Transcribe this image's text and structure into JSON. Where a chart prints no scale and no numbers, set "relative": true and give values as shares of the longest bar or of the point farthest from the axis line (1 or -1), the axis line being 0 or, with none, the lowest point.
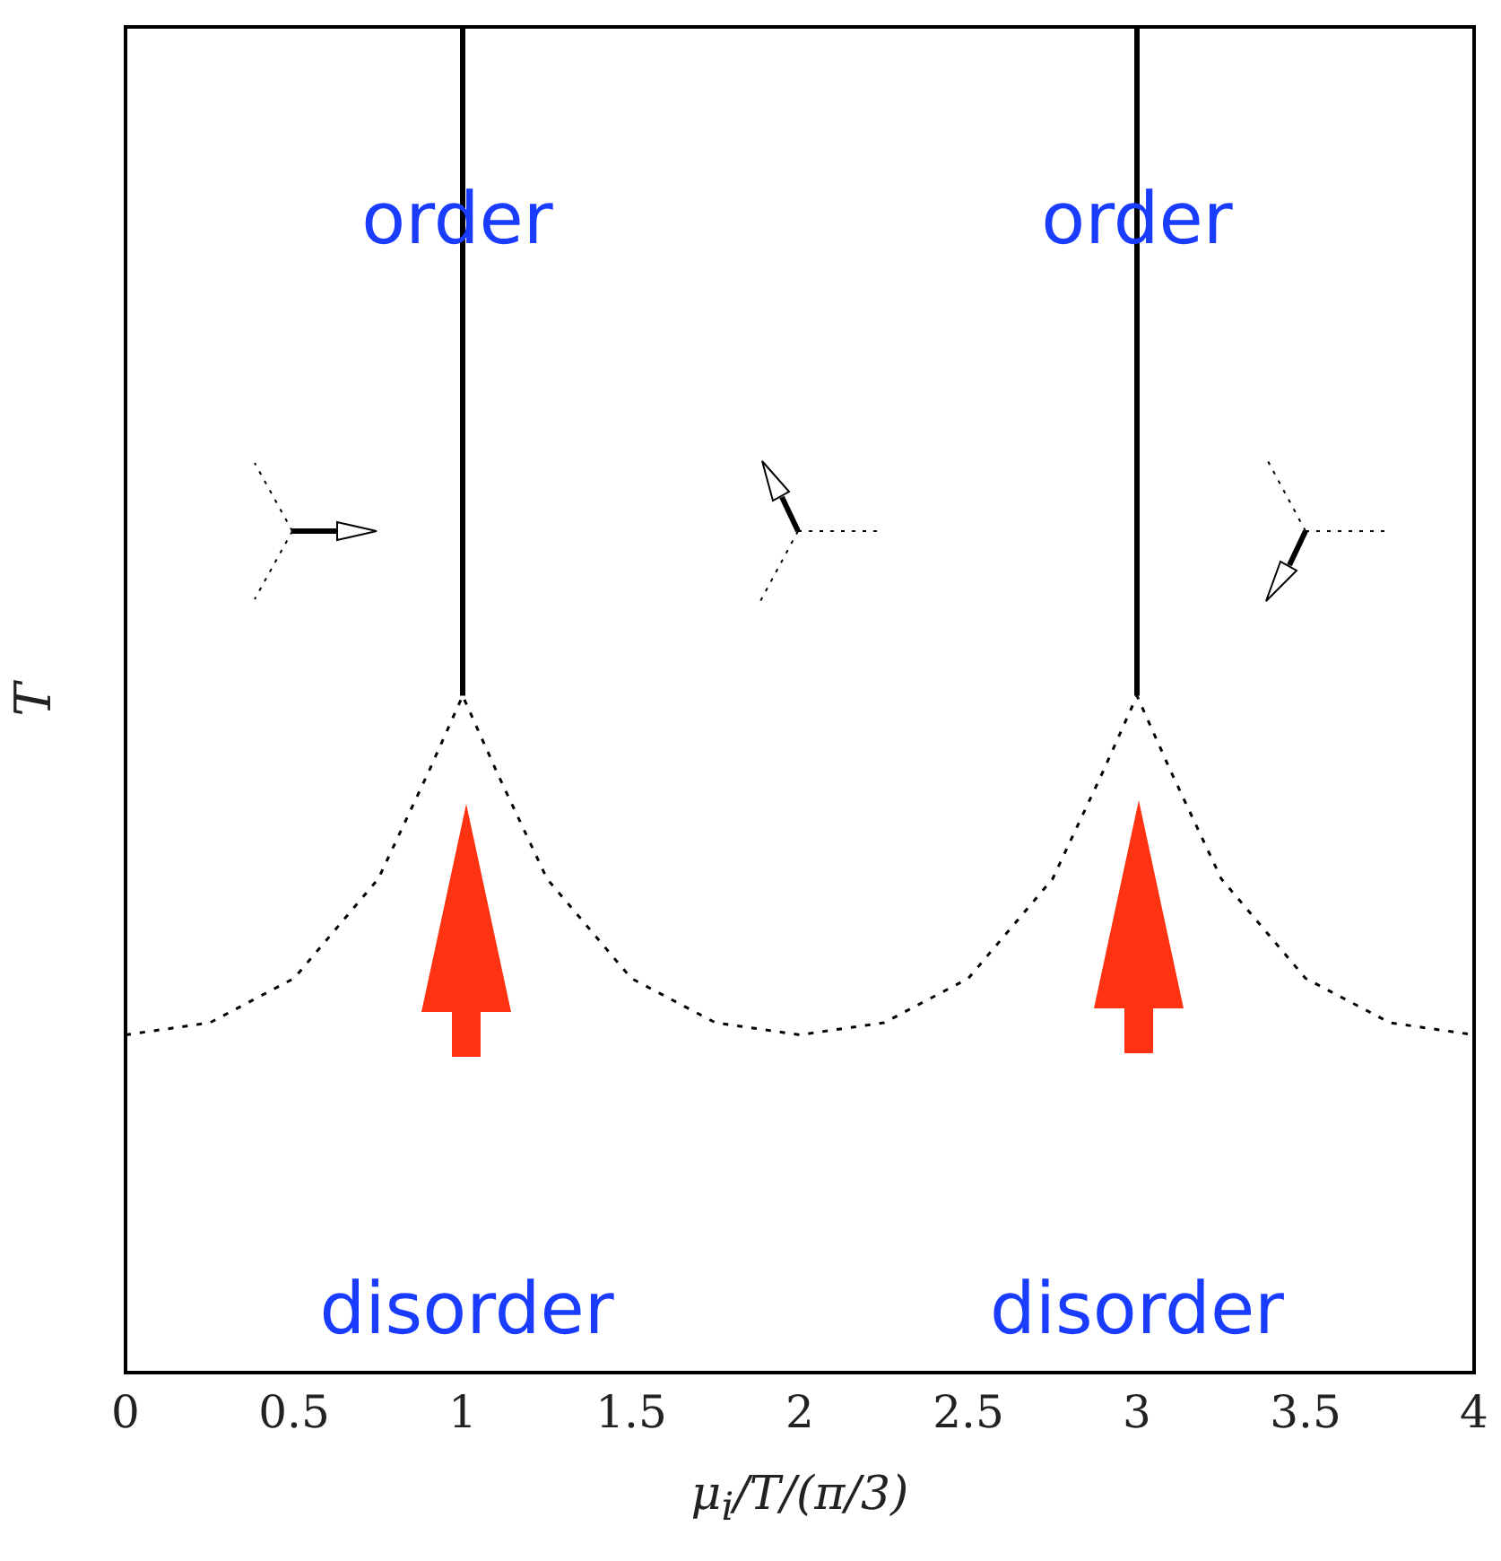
{
  "chart_data": {
    "type": "line",
    "relative": true,
    "xlabel": "μ$_{i}$/T/(π/3)",
    "ylabel": "T",
    "xlim": [
      0,
      4
    ],
    "xticks": [
      0,
      0.5,
      1,
      1.5,
      2,
      2.5,
      3,
      3.5,
      4
    ],
    "grid": false,
    "legend": false,
    "marker": "none",
    "series": [
      {
        "color": "#000000",
        "line_style": "solid",
        "x": [
          1,
          1
        ],
        "values": [
          0.503,
          1
        ]
      },
      {
        "color": "#000000",
        "line_style": "solid",
        "x": [
          3,
          3
        ],
        "values": [
          0.503,
          1
        ]
      },
      {
        "color": "#000000",
        "line_style": "dotted",
        "x": [
          0,
          0.25,
          0.5,
          0.75,
          0.9,
          1,
          1.1,
          1.25,
          1.5,
          1.75,
          2,
          2.25,
          2.5,
          2.75,
          2.9,
          3,
          3.1,
          3.25,
          3.5,
          3.75,
          4
        ],
        "values": [
          0.251,
          0.26,
          0.293,
          0.367,
          0.447,
          0.503,
          0.447,
          0.367,
          0.293,
          0.26,
          0.251,
          0.26,
          0.293,
          0.367,
          0.447,
          0.503,
          0.447,
          0.367,
          0.293,
          0.26,
          0.251
        ]
      }
    ],
    "annotations": [
      "order",
      "order",
      "disorder",
      "disorder"
    ]
  }
}
